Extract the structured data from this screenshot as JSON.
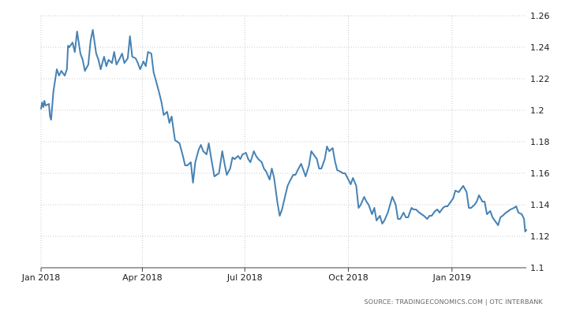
{
  "colors": {
    "line": "#4682b4",
    "grid": "#c8c8c8",
    "axis": "#444444",
    "text": "#222222",
    "source": "#666666"
  },
  "source_text": "SOURCE: TRADINGECONOMICS.COM | OTC INTERBANK",
  "chart_data": {
    "type": "line",
    "title": "",
    "xlabel": "",
    "ylabel": "",
    "grid": true,
    "y_axis_side": "right",
    "ylim": [
      1.1,
      1.26
    ],
    "xlim": [
      "2018-01-01",
      "2019-03-08"
    ],
    "y_ticks": [
      {
        "value": 1.1,
        "label": "1.1"
      },
      {
        "value": 1.12,
        "label": "1.12"
      },
      {
        "value": 1.14,
        "label": "1.14"
      },
      {
        "value": 1.16,
        "label": "1.16"
      },
      {
        "value": 1.18,
        "label": "1.18"
      },
      {
        "value": 1.2,
        "label": "1.2"
      },
      {
        "value": 1.22,
        "label": "1.22"
      },
      {
        "value": 1.24,
        "label": "1.24"
      },
      {
        "value": 1.26,
        "label": "1.26"
      }
    ],
    "x_ticks": [
      {
        "date": "2018-01-01",
        "label": "Jan 2018"
      },
      {
        "date": "2018-04-01",
        "label": "Apr 2018"
      },
      {
        "date": "2018-07-01",
        "label": "Jul 2018"
      },
      {
        "date": "2018-10-01",
        "label": "Oct 2018"
      },
      {
        "date": "2019-01-01",
        "label": "Jan 2019"
      }
    ],
    "series": [
      {
        "x": [
          "2018-01-01",
          "2018-01-02",
          "2018-01-03",
          "2018-01-04",
          "2018-01-05",
          "2018-01-08",
          "2018-01-09",
          "2018-01-10",
          "2018-01-12",
          "2018-01-15",
          "2018-01-17",
          "2018-01-19",
          "2018-01-22",
          "2018-01-24",
          "2018-01-25",
          "2018-01-26",
          "2018-01-29",
          "2018-01-31",
          "2018-02-02",
          "2018-02-05",
          "2018-02-07",
          "2018-02-09",
          "2018-02-12",
          "2018-02-14",
          "2018-02-16",
          "2018-02-19",
          "2018-02-21",
          "2018-02-23",
          "2018-02-26",
          "2018-02-28",
          "2018-03-02",
          "2018-03-05",
          "2018-03-07",
          "2018-03-09",
          "2018-03-12",
          "2018-03-14",
          "2018-03-16",
          "2018-03-19",
          "2018-03-21",
          "2018-03-23",
          "2018-03-26",
          "2018-03-28",
          "2018-03-30",
          "2018-04-02",
          "2018-04-04",
          "2018-04-06",
          "2018-04-09",
          "2018-04-11",
          "2018-04-13",
          "2018-04-16",
          "2018-04-18",
          "2018-04-20",
          "2018-04-23",
          "2018-04-25",
          "2018-04-27",
          "2018-04-30",
          "2018-05-02",
          "2018-05-04",
          "2018-05-07",
          "2018-05-09",
          "2018-05-11",
          "2018-05-14",
          "2018-05-16",
          "2018-05-18",
          "2018-05-21",
          "2018-05-23",
          "2018-05-25",
          "2018-05-28",
          "2018-05-30",
          "2018-06-01",
          "2018-06-04",
          "2018-06-06",
          "2018-06-08",
          "2018-06-11",
          "2018-06-13",
          "2018-06-15",
          "2018-06-18",
          "2018-06-20",
          "2018-06-22",
          "2018-06-25",
          "2018-06-27",
          "2018-06-29",
          "2018-07-02",
          "2018-07-04",
          "2018-07-06",
          "2018-07-09",
          "2018-07-11",
          "2018-07-13",
          "2018-07-16",
          "2018-07-18",
          "2018-07-20",
          "2018-07-23",
          "2018-07-25",
          "2018-07-27",
          "2018-07-30",
          "2018-08-01",
          "2018-08-03",
          "2018-08-06",
          "2018-08-08",
          "2018-08-10",
          "2018-08-13",
          "2018-08-15",
          "2018-08-17",
          "2018-08-20",
          "2018-08-22",
          "2018-08-24",
          "2018-08-27",
          "2018-08-29",
          "2018-08-31",
          "2018-09-03",
          "2018-09-05",
          "2018-09-07",
          "2018-09-10",
          "2018-09-12",
          "2018-09-14",
          "2018-09-17",
          "2018-09-19",
          "2018-09-21",
          "2018-09-24",
          "2018-09-26",
          "2018-09-28",
          "2018-10-01",
          "2018-10-03",
          "2018-10-05",
          "2018-10-08",
          "2018-10-10",
          "2018-10-12",
          "2018-10-15",
          "2018-10-17",
          "2018-10-19",
          "2018-10-22",
          "2018-10-24",
          "2018-10-26",
          "2018-10-29",
          "2018-10-31",
          "2018-11-02",
          "2018-11-05",
          "2018-11-07",
          "2018-11-09",
          "2018-11-12",
          "2018-11-14",
          "2018-11-16",
          "2018-11-19",
          "2018-11-21",
          "2018-11-23",
          "2018-11-26",
          "2018-11-28",
          "2018-11-30",
          "2018-12-03",
          "2018-12-05",
          "2018-12-07",
          "2018-12-10",
          "2018-12-12",
          "2018-12-14",
          "2018-12-17",
          "2018-12-19",
          "2018-12-21",
          "2018-12-24",
          "2018-12-26",
          "2018-12-28",
          "2018-12-31",
          "2019-01-02",
          "2019-01-04",
          "2019-01-07",
          "2019-01-09",
          "2019-01-11",
          "2019-01-14",
          "2019-01-16",
          "2019-01-18",
          "2019-01-21",
          "2019-01-23",
          "2019-01-25",
          "2019-01-28",
          "2019-01-30",
          "2019-02-01",
          "2019-02-04",
          "2019-02-06",
          "2019-02-08",
          "2019-02-11",
          "2019-02-13",
          "2019-02-15",
          "2019-02-18",
          "2019-02-20",
          "2019-02-22",
          "2019-02-25",
          "2019-02-27",
          "2019-03-01",
          "2019-03-04",
          "2019-03-06",
          "2019-03-07",
          "2019-03-08"
        ],
        "values": [
          1.201,
          1.205,
          1.202,
          1.206,
          1.203,
          1.204,
          1.196,
          1.194,
          1.212,
          1.226,
          1.222,
          1.225,
          1.222,
          1.226,
          1.241,
          1.24,
          1.243,
          1.237,
          1.25,
          1.236,
          1.232,
          1.225,
          1.229,
          1.244,
          1.251,
          1.236,
          1.232,
          1.226,
          1.234,
          1.228,
          1.232,
          1.23,
          1.237,
          1.229,
          1.233,
          1.236,
          1.23,
          1.233,
          1.247,
          1.234,
          1.233,
          1.23,
          1.226,
          1.231,
          1.228,
          1.237,
          1.236,
          1.224,
          1.219,
          1.211,
          1.205,
          1.197,
          1.199,
          1.192,
          1.196,
          1.181,
          1.18,
          1.179,
          1.171,
          1.165,
          1.165,
          1.167,
          1.154,
          1.167,
          1.175,
          1.178,
          1.174,
          1.172,
          1.179,
          1.17,
          1.158,
          1.159,
          1.16,
          1.174,
          1.166,
          1.159,
          1.163,
          1.17,
          1.169,
          1.171,
          1.169,
          1.172,
          1.173,
          1.169,
          1.167,
          1.174,
          1.171,
          1.169,
          1.167,
          1.163,
          1.161,
          1.156,
          1.163,
          1.157,
          1.141,
          1.133,
          1.137,
          1.146,
          1.152,
          1.155,
          1.159,
          1.159,
          1.162,
          1.166,
          1.162,
          1.158,
          1.165,
          1.174,
          1.172,
          1.169,
          1.163,
          1.163,
          1.169,
          1.177,
          1.174,
          1.176,
          1.168,
          1.162,
          1.161,
          1.16,
          1.16,
          1.156,
          1.153,
          1.157,
          1.152,
          1.138,
          1.14,
          1.145,
          1.142,
          1.14,
          1.134,
          1.138,
          1.13,
          1.133,
          1.128,
          1.13,
          1.135,
          1.14,
          1.145,
          1.14,
          1.131,
          1.131,
          1.135,
          1.132,
          1.132,
          1.138,
          1.137,
          1.137,
          1.135,
          1.134,
          1.133,
          1.131,
          1.133,
          1.133,
          1.136,
          1.137,
          1.135,
          1.138,
          1.139,
          1.139,
          1.142,
          1.144,
          1.149,
          1.148,
          1.15,
          1.152,
          1.148,
          1.138,
          1.138,
          1.14,
          1.142,
          1.146,
          1.142,
          1.142,
          1.134,
          1.136,
          1.132,
          1.13,
          1.127,
          1.132,
          1.133,
          1.135,
          1.136,
          1.137,
          1.138,
          1.139,
          1.135,
          1.134,
          1.131,
          1.123,
          1.124
        ]
      }
    ]
  }
}
